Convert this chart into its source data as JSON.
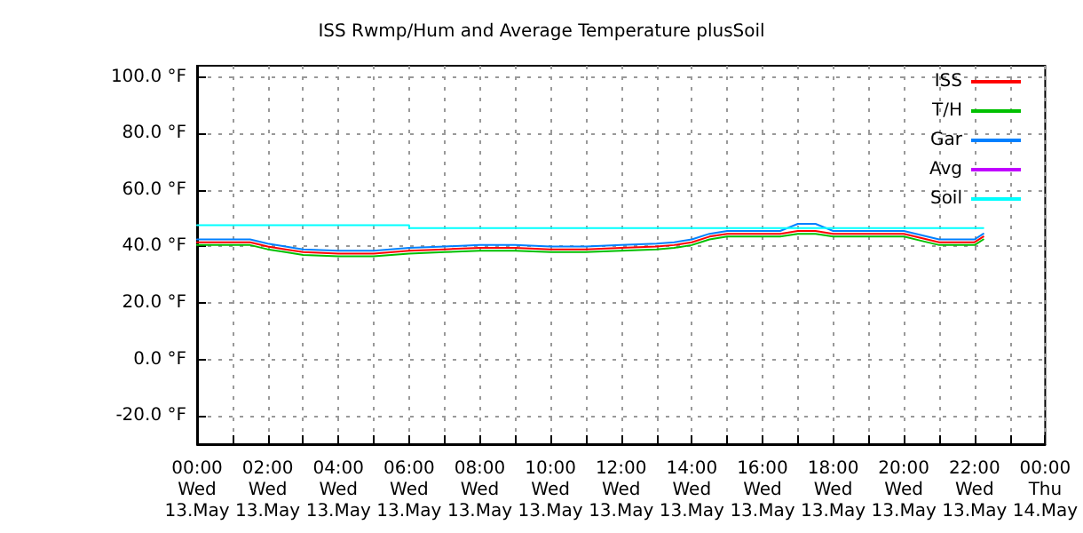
{
  "chart_data": {
    "type": "line",
    "title": "ISS Rwmp/Hum and Average Temperature plusSoil",
    "xlim": [
      "--05-13T00:00",
      "--05-14T00:00"
    ],
    "xticks": [
      {
        "value": "--05-13T00:00",
        "label": "00:00\nWed\n13.May"
      },
      {
        "value": "--05-13T01:00",
        "label": null
      },
      {
        "value": "--05-13T02:00",
        "label": "02:00\nWed\n13.May"
      },
      {
        "value": "--05-13T03:00",
        "label": null
      },
      {
        "value": "--05-13T04:00",
        "label": "04:00\nWed\n13.May"
      },
      {
        "value": "--05-13T05:00",
        "label": null
      },
      {
        "value": "--05-13T06:00",
        "label": "06:00\nWed\n13.May"
      },
      {
        "value": "--05-13T07:00",
        "label": null
      },
      {
        "value": "--05-13T08:00",
        "label": "08:00\nWed\n13.May"
      },
      {
        "value": "--05-13T09:00",
        "label": null
      },
      {
        "value": "--05-13T10:00",
        "label": "10:00\nWed\n13.May"
      },
      {
        "value": "--05-13T11:00",
        "label": null
      },
      {
        "value": "--05-13T12:00",
        "label": "12:00\nWed\n13.May"
      },
      {
        "value": "--05-13T13:00",
        "label": null
      },
      {
        "value": "--05-13T14:00",
        "label": "14:00\nWed\n13.May"
      },
      {
        "value": "--05-13T15:00",
        "label": null
      },
      {
        "value": "--05-13T16:00",
        "label": "16:00\nWed\n13.May"
      },
      {
        "value": "--05-13T17:00",
        "label": null
      },
      {
        "value": "--05-13T18:00",
        "label": "18:00\nWed\n13.May"
      },
      {
        "value": "--05-13T19:00",
        "label": null
      },
      {
        "value": "--05-13T20:00",
        "label": "20:00\nWed\n13.May"
      },
      {
        "value": "--05-13T21:00",
        "label": null
      },
      {
        "value": "--05-13T22:00",
        "label": "22:00\nWed\n13.May"
      },
      {
        "value": "--05-13T23:00",
        "label": null
      },
      {
        "value": "--05-14T00:00",
        "label": "00:00\nThu\n14.May"
      }
    ],
    "ylim": [
      -30,
      104
    ],
    "yticks": [
      {
        "value": -20,
        "label": "-20.0 °F"
      },
      {
        "value": 0,
        "label": "0.0 °F"
      },
      {
        "value": 20,
        "label": "20.0 °F"
      },
      {
        "value": 40,
        "label": "40.0 °F"
      },
      {
        "value": 60,
        "label": "60.0 °F"
      },
      {
        "value": 80,
        "label": "80.0 °F"
      },
      {
        "value": 100,
        "label": "100.0 °F"
      }
    ],
    "grid": true,
    "legend": "top right",
    "marker": "none",
    "line_style": "solid",
    "series": [
      {
        "name": "ISS",
        "color": "#ff0000",
        "x": [
          "--05-13T00:00",
          "--05-13T01:30",
          "--05-13T02:00",
          "--05-13T02:30",
          "--05-13T03:00",
          "--05-13T04:00",
          "--05-13T05:00",
          "--05-13T06:00",
          "--05-13T07:00",
          "--05-13T08:00",
          "--05-13T09:00",
          "--05-13T10:00",
          "--05-13T11:00",
          "--05-13T12:00",
          "--05-13T13:00",
          "--05-13T13:30",
          "--05-13T14:00",
          "--05-13T14:30",
          "--05-13T15:00",
          "--05-13T15:30",
          "--05-13T16:00",
          "--05-13T16:30",
          "--05-13T17:00",
          "--05-13T17:30",
          "--05-13T18:00",
          "--05-13T18:30",
          "--05-13T19:00",
          "--05-13T19:30",
          "--05-13T20:00",
          "--05-13T20:30",
          "--05-13T21:00",
          "--05-13T21:30",
          "--05-13T22:00",
          "--05-13T22:15"
        ],
        "values": [
          41.5,
          41.5,
          40,
          39,
          38,
          37.5,
          37.5,
          38.5,
          39,
          39.5,
          39.5,
          39,
          39,
          39.5,
          40,
          40.5,
          41.5,
          43.5,
          44.5,
          44.5,
          44.5,
          44.5,
          45.5,
          45.5,
          44.5,
          44.5,
          44.5,
          44.5,
          44.5,
          43,
          41.5,
          41.5,
          41.5,
          43.5
        ]
      },
      {
        "name": "T/H",
        "color": "#00c000",
        "x": [
          "--05-13T00:00",
          "--05-13T01:30",
          "--05-13T02:00",
          "--05-13T02:30",
          "--05-13T03:00",
          "--05-13T04:00",
          "--05-13T05:00",
          "--05-13T06:00",
          "--05-13T07:00",
          "--05-13T08:00",
          "--05-13T09:00",
          "--05-13T10:00",
          "--05-13T11:00",
          "--05-13T12:00",
          "--05-13T13:00",
          "--05-13T13:30",
          "--05-13T14:00",
          "--05-13T14:30",
          "--05-13T15:00",
          "--05-13T15:30",
          "--05-13T16:00",
          "--05-13T16:30",
          "--05-13T17:00",
          "--05-13T17:30",
          "--05-13T18:00",
          "--05-13T18:30",
          "--05-13T19:00",
          "--05-13T19:30",
          "--05-13T20:00",
          "--05-13T20:30",
          "--05-13T21:00",
          "--05-13T21:30",
          "--05-13T22:00",
          "--05-13T22:15"
        ],
        "values": [
          40.5,
          40.5,
          39,
          38,
          37,
          36.5,
          36.5,
          37.5,
          38,
          38.5,
          38.5,
          38,
          38,
          38.5,
          39,
          39.5,
          40.5,
          42.5,
          43.5,
          43.5,
          43.5,
          43.5,
          44.5,
          44.5,
          43.5,
          43.5,
          43.5,
          43.5,
          43.5,
          42,
          40.5,
          40.5,
          40.5,
          42.5
        ]
      },
      {
        "name": "Gar",
        "color": "#0080ff",
        "x": [
          "--05-13T00:00",
          "--05-13T01:30",
          "--05-13T02:00",
          "--05-13T02:30",
          "--05-13T03:00",
          "--05-13T04:00",
          "--05-13T05:00",
          "--05-13T06:00",
          "--05-13T07:00",
          "--05-13T08:00",
          "--05-13T09:00",
          "--05-13T10:00",
          "--05-13T11:00",
          "--05-13T12:00",
          "--05-13T13:00",
          "--05-13T13:30",
          "--05-13T14:00",
          "--05-13T14:30",
          "--05-13T15:00",
          "--05-13T15:30",
          "--05-13T16:00",
          "--05-13T16:30",
          "--05-13T17:00",
          "--05-13T17:30",
          "--05-13T18:00",
          "--05-13T18:30",
          "--05-13T19:00",
          "--05-13T19:30",
          "--05-13T20:00",
          "--05-13T20:30",
          "--05-13T21:00",
          "--05-13T21:30",
          "--05-13T22:00",
          "--05-13T22:15"
        ],
        "values": [
          42.5,
          42.5,
          41,
          40,
          39,
          38.5,
          38.5,
          39.5,
          40,
          40.5,
          40.5,
          40,
          40,
          40.5,
          41,
          41.5,
          42.5,
          44.5,
          45.5,
          45.5,
          45.5,
          45.5,
          48,
          48,
          45.5,
          45.5,
          45.5,
          45.5,
          45.5,
          44,
          42.5,
          42.5,
          42.5,
          44.5
        ]
      },
      {
        "name": "Avg",
        "color": "#c000ff"
      },
      {
        "name": "Soil",
        "color": "#00ffff",
        "x": [
          "--05-13T00:00",
          "--05-13T06:00",
          "--05-13T06:00",
          "--05-13T22:15"
        ],
        "values": [
          47.5,
          47.5,
          46.5,
          46.5
        ]
      }
    ]
  }
}
